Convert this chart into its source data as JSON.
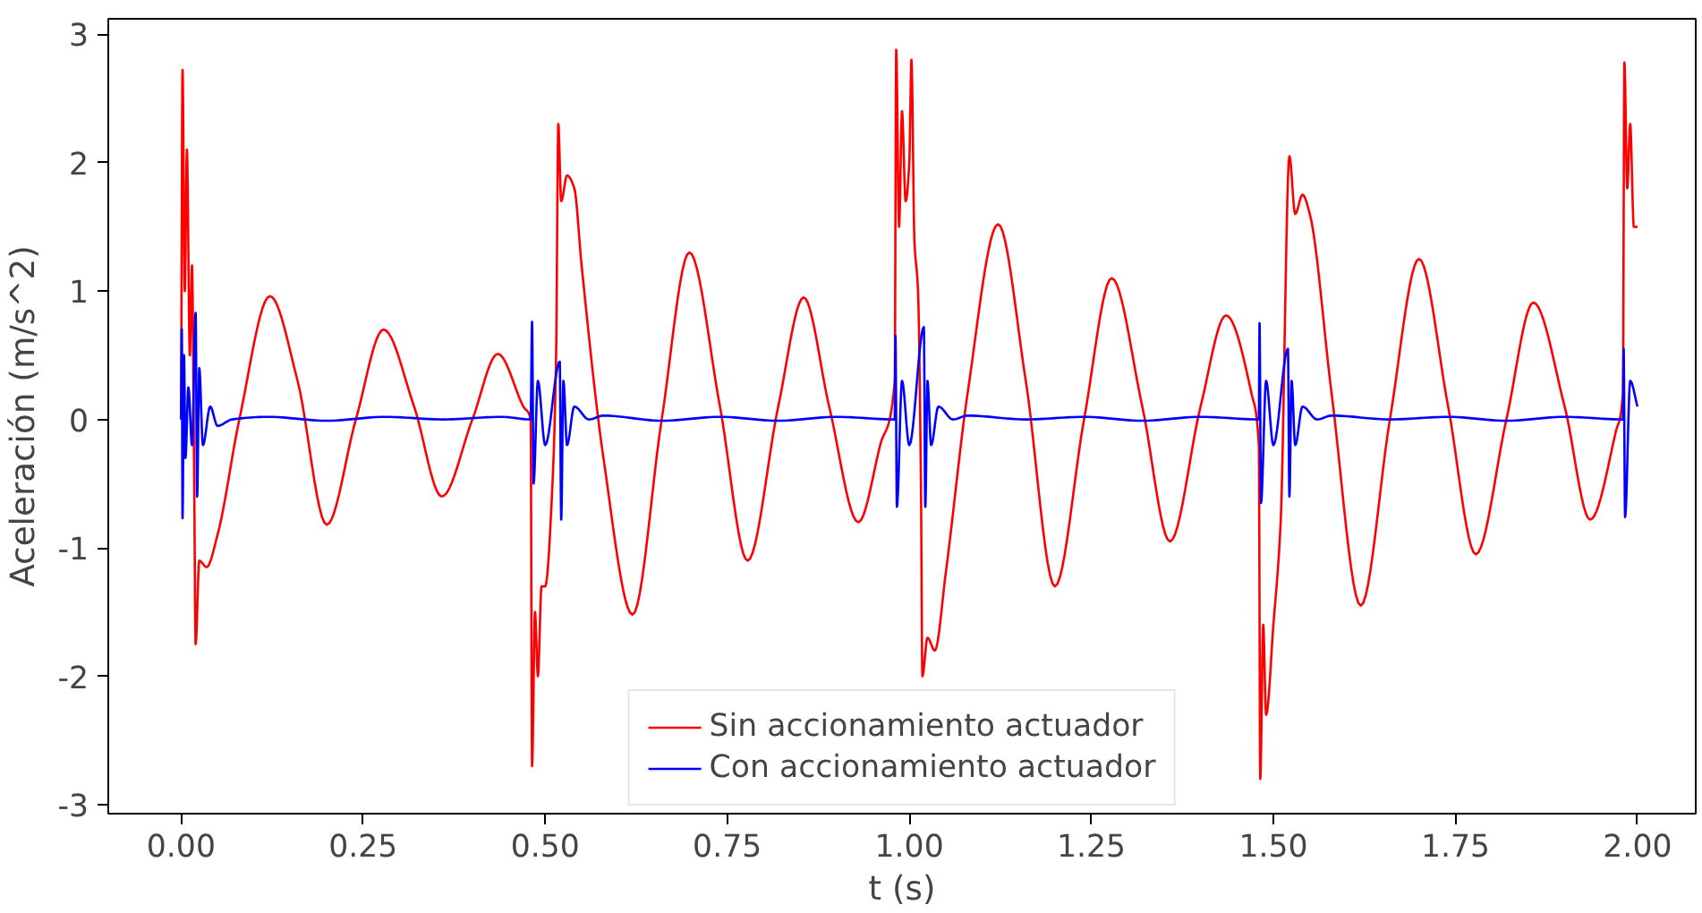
{
  "chart_data": {
    "type": "line",
    "xlabel": "t (s)",
    "ylabel": "Aceleración (m/s^2)",
    "xlim": [
      -0.1,
      2.08
    ],
    "ylim": [
      -3.07,
      3.12
    ],
    "xticks": [
      {
        "value": 0,
        "label": "0.00"
      },
      {
        "value": 0.25,
        "label": "0.25"
      },
      {
        "value": 0.5,
        "label": "0.50"
      },
      {
        "value": 0.75,
        "label": "0.75"
      },
      {
        "value": 1,
        "label": "1.00"
      },
      {
        "value": 1.25,
        "label": "1.25"
      },
      {
        "value": 1.5,
        "label": "1.50"
      },
      {
        "value": 1.75,
        "label": "1.75"
      },
      {
        "value": 2,
        "label": "2.00"
      }
    ],
    "yticks": [
      -3,
      -2,
      -1,
      0,
      1,
      2,
      3
    ],
    "grid": false,
    "legend": "bottom",
    "marker": "none",
    "line_style": "solid",
    "series": [
      {
        "name": "Sin accionamiento actuador",
        "color": "#ff0000",
        "x": [
          0,
          0.002,
          0.005,
          0.008,
          0.012,
          0.015,
          0.018,
          0.02,
          0.025,
          0.035,
          0.05,
          0.08,
          0.122,
          0.16,
          0.2,
          0.24,
          0.278,
          0.32,
          0.358,
          0.4,
          0.435,
          0.47,
          0.48,
          0.482,
          0.486,
          0.49,
          0.495,
          0.5,
          0.51,
          0.515,
          0.518,
          0.522,
          0.53,
          0.54,
          0.55,
          0.58,
          0.62,
          0.66,
          0.698,
          0.74,
          0.778,
          0.82,
          0.855,
          0.89,
          0.93,
          0.96,
          0.98,
          0.982,
          0.986,
          0.99,
          0.995,
          1.0,
          1.003,
          1.007,
          1.012,
          1.016,
          1.018,
          1.025,
          1.035,
          1.05,
          1.08,
          1.122,
          1.16,
          1.2,
          1.24,
          1.278,
          1.32,
          1.358,
          1.4,
          1.435,
          1.47,
          1.48,
          1.482,
          1.486,
          1.49,
          1.5,
          1.51,
          1.522,
          1.53,
          1.54,
          1.55,
          1.58,
          1.62,
          1.66,
          1.7,
          1.74,
          1.778,
          1.82,
          1.857,
          1.9,
          1.935,
          1.97,
          1.98,
          1.982,
          1.986,
          1.99,
          1.995,
          2.0
        ],
        "values": [
          0,
          2.72,
          1.0,
          2.1,
          0.5,
          1.2,
          -0.5,
          -1.75,
          -1.1,
          -1.15,
          -0.9,
          0.0,
          0.96,
          0.3,
          -0.82,
          0.0,
          0.7,
          0.1,
          -0.6,
          0.0,
          0.51,
          0.1,
          0.0,
          -2.7,
          -1.5,
          -2.0,
          -1.3,
          -1.3,
          -0.5,
          0.5,
          2.3,
          1.7,
          1.9,
          1.8,
          1.2,
          -0.3,
          -1.52,
          0.0,
          1.3,
          0.1,
          -1.1,
          0.1,
          0.95,
          0.1,
          -0.8,
          -0.2,
          0.3,
          2.88,
          1.5,
          2.4,
          1.7,
          2.0,
          2.8,
          1.4,
          1.0,
          -0.5,
          -2.0,
          -1.7,
          -1.8,
          -1.2,
          0.2,
          1.52,
          0.3,
          -1.3,
          0.0,
          1.1,
          0.1,
          -0.95,
          0.1,
          0.81,
          0.2,
          -0.2,
          -2.8,
          -1.6,
          -2.3,
          -1.6,
          -0.8,
          2.05,
          1.6,
          1.75,
          1.6,
          0.2,
          -1.45,
          0.0,
          1.25,
          0.1,
          -1.05,
          0.0,
          0.91,
          0.1,
          -0.78,
          -0.1,
          0.2,
          2.78,
          1.8,
          2.3,
          1.5,
          1.5
        ]
      },
      {
        "name": "Con accionamiento actuador",
        "color": "#0000ff",
        "x": [
          0,
          0.001,
          0.002,
          0.004,
          0.006,
          0.01,
          0.015,
          0.02,
          0.022,
          0.025,
          0.03,
          0.04,
          0.05,
          0.07,
          0.12,
          0.2,
          0.28,
          0.36,
          0.44,
          0.48,
          0.482,
          0.484,
          0.49,
          0.5,
          0.52,
          0.522,
          0.525,
          0.53,
          0.54,
          0.56,
          0.58,
          0.66,
          0.74,
          0.82,
          0.9,
          0.98,
          0.981,
          0.983,
          0.99,
          1.0,
          1.02,
          1.022,
          1.025,
          1.03,
          1.04,
          1.06,
          1.08,
          1.16,
          1.24,
          1.32,
          1.4,
          1.48,
          1.481,
          1.483,
          1.49,
          1.5,
          1.52,
          1.522,
          1.525,
          1.53,
          1.54,
          1.56,
          1.58,
          1.66,
          1.74,
          1.82,
          1.9,
          1.98,
          1.981,
          1.983,
          1.99,
          2.0
        ],
        "values": [
          0,
          0.7,
          -0.77,
          0.5,
          -0.3,
          0.25,
          -0.2,
          0.83,
          -0.6,
          0.4,
          -0.2,
          0.1,
          -0.05,
          0,
          0.02,
          -0.01,
          0.02,
          0,
          0.02,
          0,
          0.76,
          -0.5,
          0.3,
          -0.2,
          0.45,
          -0.78,
          0.3,
          -0.2,
          0.1,
          0,
          0.03,
          -0.01,
          0.02,
          -0.01,
          0.02,
          0,
          0.65,
          -0.68,
          0.3,
          -0.2,
          0.72,
          -0.68,
          0.3,
          -0.2,
          0.1,
          0,
          0.03,
          0,
          0.02,
          -0.01,
          0.02,
          0,
          0.75,
          -0.65,
          0.3,
          -0.2,
          0.55,
          -0.6,
          0.3,
          -0.2,
          0.1,
          0,
          0.03,
          0,
          0.02,
          -0.01,
          0.02,
          0,
          0.55,
          -0.76,
          0.3,
          0.1
        ]
      }
    ]
  }
}
